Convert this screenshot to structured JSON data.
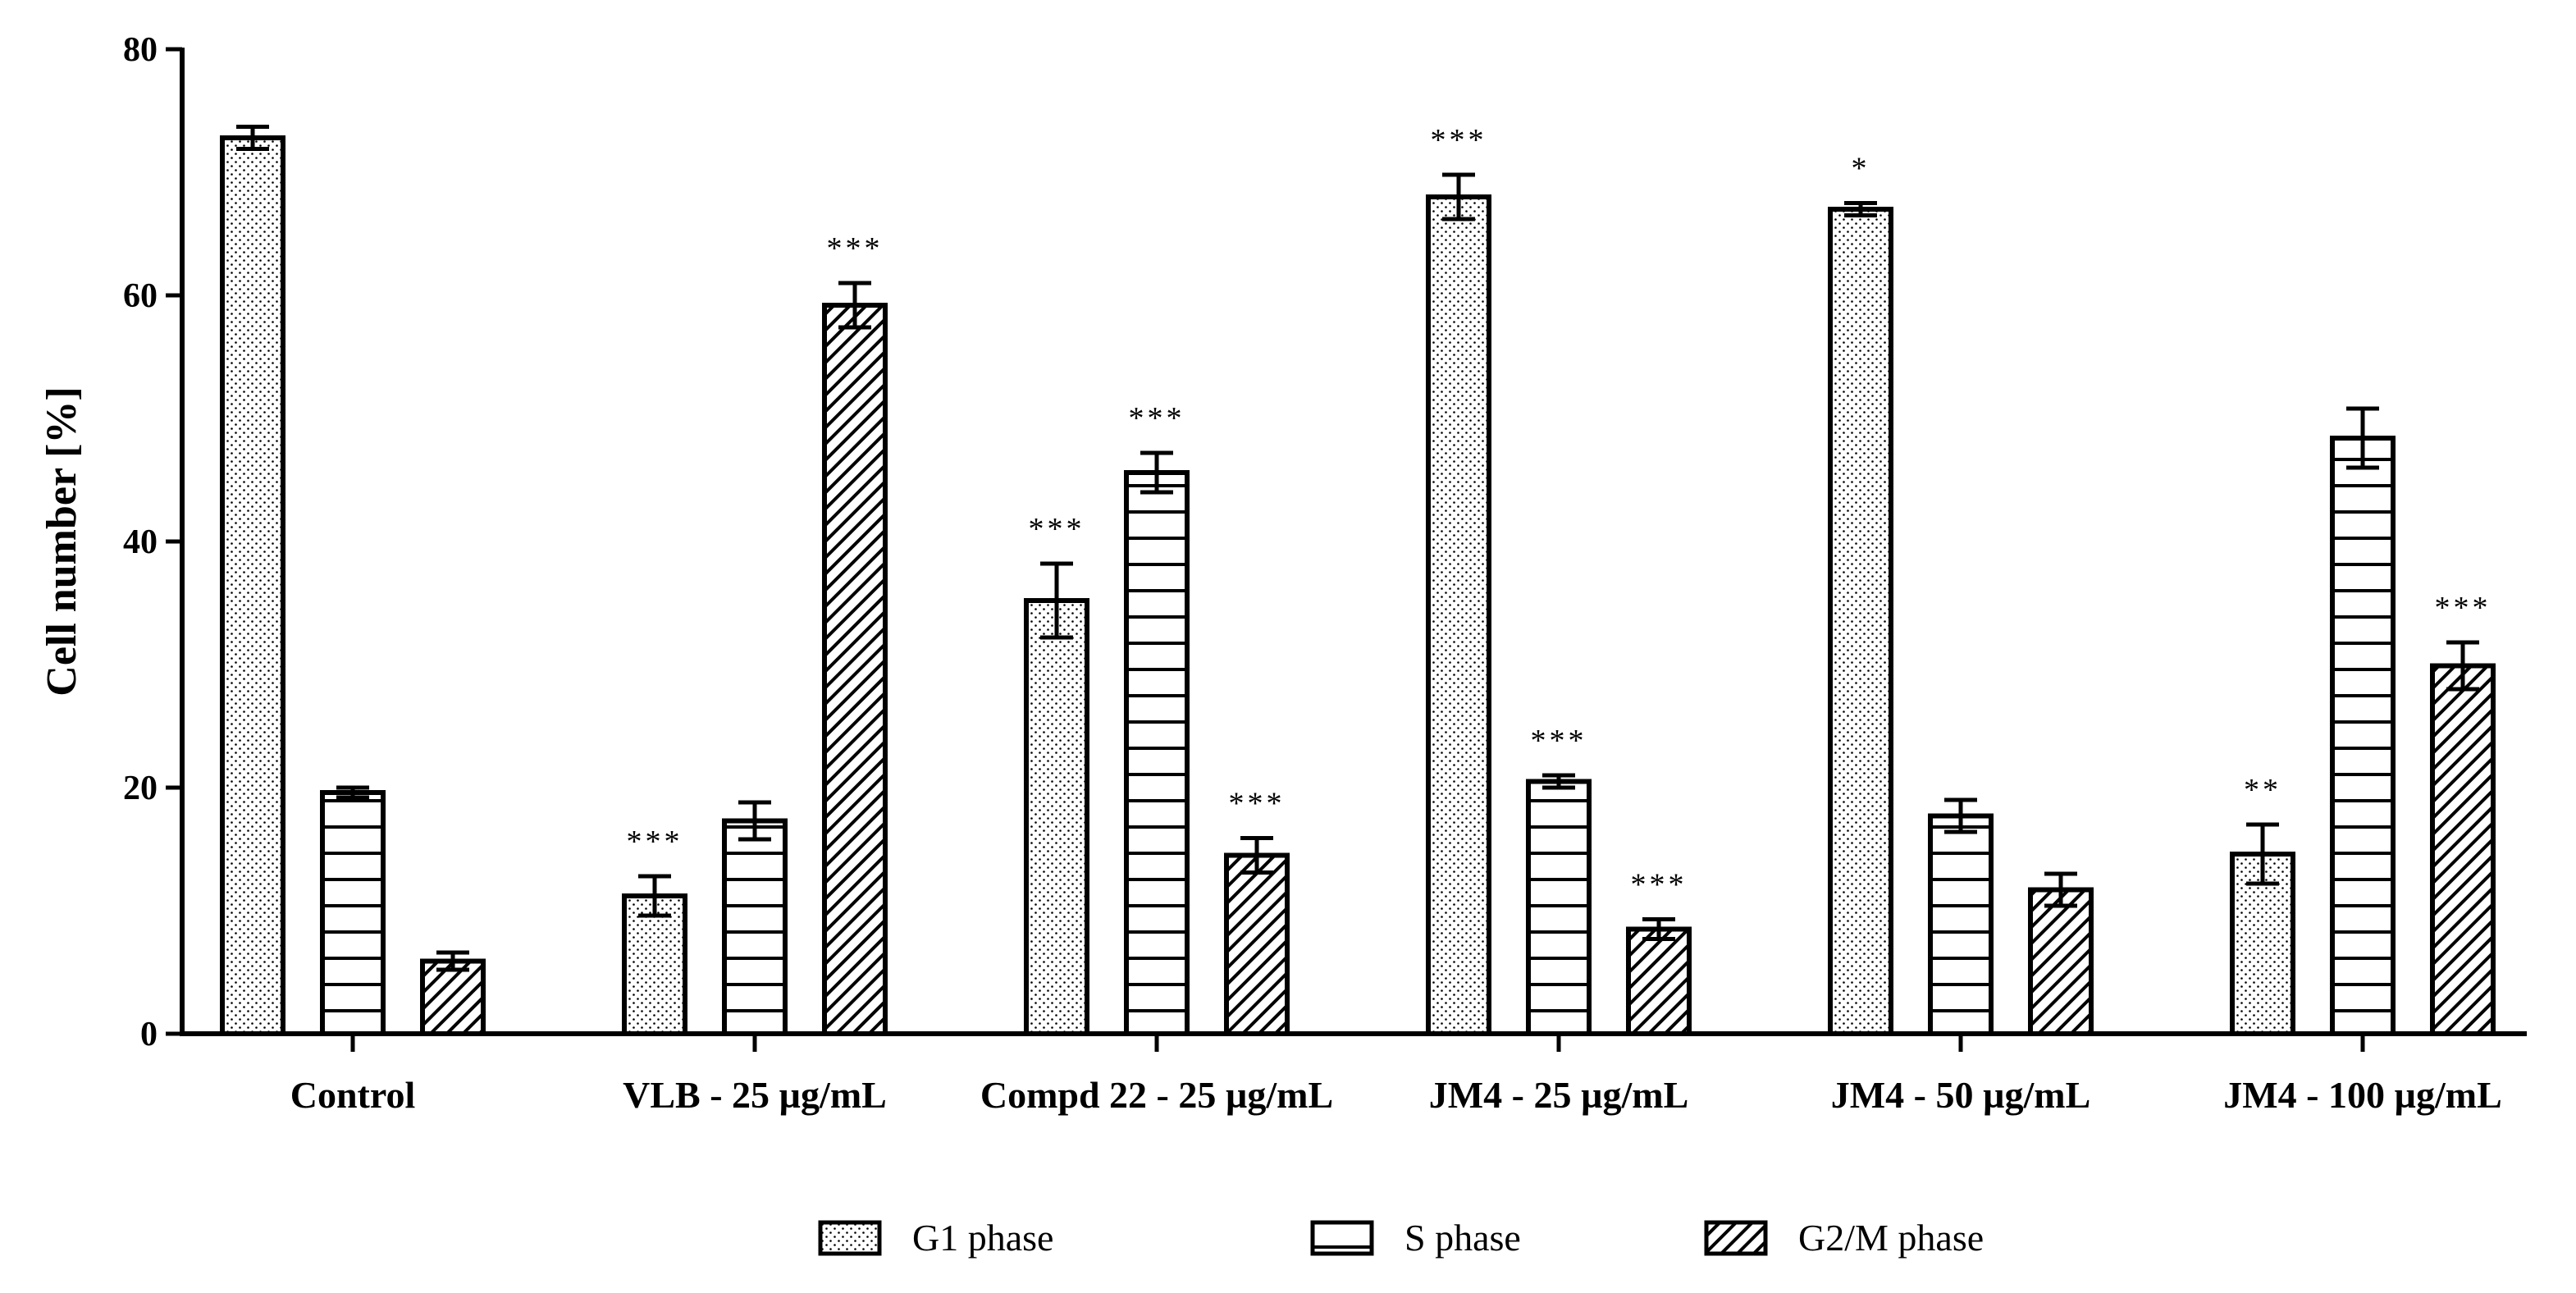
{
  "chart_data": {
    "type": "bar",
    "title": "",
    "xlabel": "",
    "ylabel": "Cell number [%]",
    "ylim": [
      0,
      80
    ],
    "yticks": [
      "0",
      "20",
      "40",
      "60",
      "80"
    ],
    "ytick_values": [
      0,
      20,
      40,
      60,
      80
    ],
    "categories": [
      "Control",
      "VLB - 25 µg/mL",
      "Compd 22 - 25 µg/mL",
      "JM4 - 25 µg/mL",
      "JM4 - 50 µg/mL",
      "JM4 - 100 µg/mL"
    ],
    "series": [
      {
        "name": "G1 phase",
        "pattern": "dots",
        "values": [
          72.8,
          11.2,
          35.2,
          68.0,
          67.0,
          14.6
        ],
        "errors": [
          0.9,
          1.6,
          3.0,
          1.8,
          0.5,
          2.4
        ],
        "significance": [
          "",
          "***",
          "***",
          "***",
          "*",
          "**"
        ]
      },
      {
        "name": "S phase",
        "pattern": "horizontal",
        "values": [
          19.6,
          17.3,
          45.6,
          20.5,
          17.7,
          48.4
        ],
        "errors": [
          0.4,
          1.5,
          1.6,
          0.5,
          1.3,
          2.4
        ],
        "significance": [
          "",
          "",
          "***",
          "***",
          "",
          ""
        ]
      },
      {
        "name": "G2/M phase",
        "pattern": "diagonal",
        "values": [
          5.9,
          59.2,
          14.5,
          8.5,
          11.7,
          29.9
        ],
        "errors": [
          0.7,
          1.8,
          1.4,
          0.8,
          1.3,
          1.9
        ],
        "significance": [
          "",
          "***",
          "***",
          "***",
          "",
          "***"
        ]
      }
    ],
    "legend_position": "bottom"
  }
}
